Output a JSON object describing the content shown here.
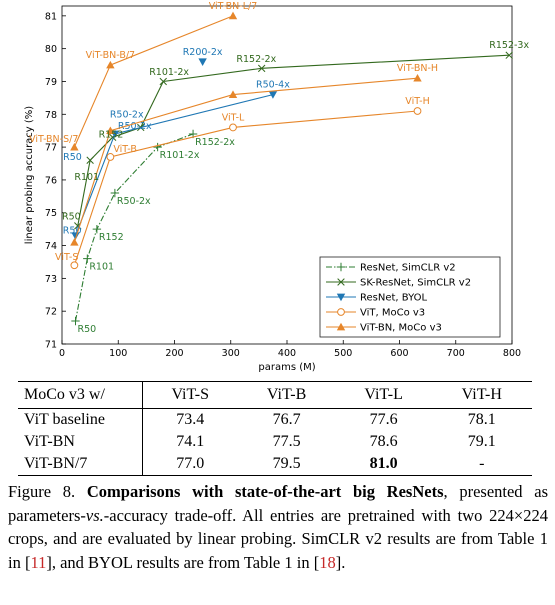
{
  "chart_data": {
    "type": "line",
    "xlabel": "params (M)",
    "ylabel": "linear probing accuracy (%)",
    "xlim": [
      0,
      800
    ],
    "ylim": [
      71,
      81.3
    ],
    "xticks": [
      0,
      100,
      200,
      300,
      400,
      500,
      600,
      700,
      800
    ],
    "yticks": [
      71,
      72,
      73,
      74,
      75,
      76,
      77,
      78,
      79,
      80,
      81
    ],
    "grid": false,
    "legend_position": "bottom-right",
    "series": [
      {
        "name": "ResNet, SimCLR v2",
        "color": "#2e7d32",
        "dash": "dashdot",
        "marker": "plus",
        "points": [
          {
            "x": 24,
            "y": 71.7,
            "label": "R50"
          },
          {
            "x": 45,
            "y": 73.6,
            "label": "R101"
          },
          {
            "x": 62,
            "y": 74.5,
            "label": "R152"
          },
          {
            "x": 94,
            "y": 75.6,
            "label": "R50-2x"
          },
          {
            "x": 170,
            "y": 77.0,
            "label": "R101-2x"
          },
          {
            "x": 233,
            "y": 77.4,
            "label": "R152-2x"
          }
        ]
      },
      {
        "name": "SK-ResNet, SimCLR v2",
        "color": "#33691e",
        "dash": "solid",
        "marker": "x",
        "points": [
          {
            "x": 28,
            "y": 74.6
          },
          {
            "x": 50,
            "y": 76.6
          },
          {
            "x": 90,
            "y": 77.3
          },
          {
            "x": 140,
            "y": 77.6
          },
          {
            "x": 180,
            "y": 79.0
          },
          {
            "x": 355,
            "y": 79.4
          },
          {
            "x": 795,
            "y": 79.8,
            "label": "R152-3x"
          }
        ]
      },
      {
        "name": "ResNet, BYOL",
        "color": "#1f77b4",
        "dash": "solid",
        "marker": "triangle-down",
        "points": [
          {
            "x": 24,
            "y": 74.3,
            "label": "R50"
          },
          {
            "x": 94,
            "y": 77.4,
            "label": "R50-2x"
          },
          {
            "x": 375,
            "y": 78.6,
            "label": "R50-4x"
          },
          {
            "x": 250,
            "y": 79.6,
            "label": "R200-2x",
            "isolated": true
          }
        ]
      },
      {
        "name": "ViT, MoCo v3",
        "color": "#e6862a",
        "dash": "solid",
        "marker": "circle",
        "points": [
          {
            "x": 22,
            "y": 73.4,
            "label": "ViT-S"
          },
          {
            "x": 86,
            "y": 76.7,
            "label": "ViT-B"
          },
          {
            "x": 304,
            "y": 77.6,
            "label": "ViT-L"
          },
          {
            "x": 632,
            "y": 78.1,
            "label": "ViT-H"
          }
        ]
      },
      {
        "name": "ViT-BN, MoCo v3",
        "color": "#e6862a",
        "dash": "solid",
        "marker": "triangle-up",
        "points": [
          {
            "x": 22,
            "y": 74.1
          },
          {
            "x": 86,
            "y": 77.5
          },
          {
            "x": 304,
            "y": 78.6
          },
          {
            "x": 632,
            "y": 79.1,
            "label": "ViT-BN-H"
          }
        ]
      },
      {
        "name": "ViT-BN/7",
        "color": "#e6862a",
        "dash": "solid",
        "marker": "triangle-up",
        "in_legend": false,
        "points": [
          {
            "x": 22,
            "y": 77.0,
            "label": "ViT-BN-S/7"
          },
          {
            "x": 86,
            "y": 79.5,
            "label": "ViT-BN-B/7"
          },
          {
            "x": 304,
            "y": 81.0,
            "label": "ViT-BN-L/7"
          }
        ]
      }
    ],
    "extra_labels": [
      {
        "text": "R101",
        "x": 22,
        "y": 76.0
      },
      {
        "text": "R152",
        "x": 65,
        "y": 77.3
      },
      {
        "text": "R50-2x",
        "x": 85,
        "y": 77.9
      },
      {
        "text": "R101-2x",
        "x": 155,
        "y": 79.2
      },
      {
        "text": "R152-2x",
        "x": 310,
        "y": 79.6
      },
      {
        "text": "R50",
        "x": 0,
        "y": 74.8
      },
      {
        "text": "R50",
        "x": 2,
        "y": 76.6
      }
    ]
  },
  "table": {
    "header": [
      "MoCo v3 w/",
      "ViT-S",
      "ViT-B",
      "ViT-L",
      "ViT-H"
    ],
    "rows": [
      [
        "ViT baseline",
        "73.4",
        "76.7",
        "77.6",
        "78.1"
      ],
      [
        "ViT-BN",
        "74.1",
        "77.5",
        "78.6",
        "79.1"
      ],
      [
        "ViT-BN/7",
        "77.0",
        "79.5",
        "81.0",
        "-"
      ]
    ]
  },
  "caption": {
    "fig": "Figure 8.",
    "bold": "Comparisons with state-of-the-art big ResNets",
    "text1": ", presented as parameters-",
    "vs": "vs.",
    "text2": "-accuracy trade-off.  All entries are pretrained with two 224×224 crops, and are evaluated by linear probing. SimCLR v2 results are from Table 1 in [",
    "ref1": "11",
    "text3": "], and BYOL results are from Table 1 in [",
    "ref2": "18",
    "text4": "]."
  }
}
